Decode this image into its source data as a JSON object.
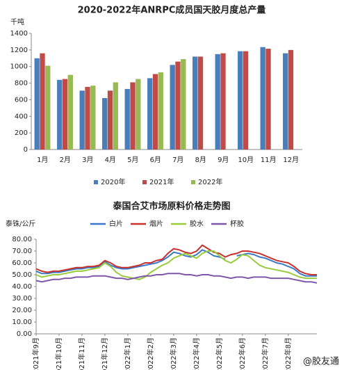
{
  "chart_data": [
    {
      "type": "bar",
      "title": "2020-2022年ANRPC成员国天胶月度总产量",
      "y_label": "千吨",
      "categories": [
        "1月",
        "2月",
        "3月",
        "4月",
        "5月",
        "6月",
        "7月",
        "8月",
        "9月",
        "10月",
        "11月",
        "12月"
      ],
      "series": [
        {
          "name": "2020年",
          "color": "#4a7ebb",
          "values": [
            1100,
            840,
            710,
            620,
            730,
            860,
            1020,
            1120,
            1150,
            1185,
            1235,
            1160
          ]
        },
        {
          "name": "2021年",
          "color": "#be4b48",
          "values": [
            1160,
            850,
            755,
            710,
            810,
            910,
            1060,
            1120,
            1160,
            1185,
            1215,
            1200
          ]
        },
        {
          "name": "2022年",
          "color": "#98b954",
          "values": [
            1010,
            900,
            770,
            810,
            850,
            930,
            1090,
            null,
            null,
            null,
            null,
            null
          ]
        }
      ],
      "ylim": [
        0,
        1400
      ],
      "yticks": [
        0,
        200,
        400,
        600,
        800,
        1000,
        1200,
        1400
      ],
      "legend": "bottom"
    },
    {
      "type": "line",
      "title": "泰国合艾市场原料价格走势图",
      "y_label": "泰铢/公斤",
      "categories": [
        "2021年9月",
        null,
        null,
        null,
        "2021年10月",
        null,
        null,
        null,
        "2021年11月",
        null,
        null,
        null,
        "2021年12月",
        null,
        null,
        null,
        "2022年1月",
        null,
        null,
        null,
        "2022年2月",
        null,
        null,
        null,
        "2022年3月",
        null,
        null,
        null,
        "2022年4月",
        null,
        null,
        null,
        "2022年5月",
        null,
        null,
        null,
        "2022年6月",
        null,
        null,
        null,
        "2022年7月",
        null,
        null,
        null,
        "2022年8月",
        null,
        null,
        null,
        null,
        null
      ],
      "series": [
        {
          "name": "白片",
          "color": "#3a78c9",
          "values": [
            53,
            51,
            51,
            52,
            52,
            53,
            54,
            55,
            55,
            56,
            56,
            57,
            61,
            58,
            56,
            55,
            55,
            56,
            57,
            58,
            59,
            60,
            62,
            65,
            69,
            68,
            66,
            65,
            67,
            71,
            69,
            66,
            65,
            63,
            null,
            66,
            67,
            68,
            67,
            65,
            64,
            62,
            60,
            59,
            57,
            55,
            51,
            49,
            49,
            49
          ]
        },
        {
          "name": "烟片",
          "color": "#c9302c",
          "values": [
            55,
            53,
            52,
            53,
            53,
            54,
            55,
            56,
            56,
            57,
            57,
            58,
            62,
            60,
            57,
            56,
            56,
            57,
            58,
            60,
            60,
            62,
            63,
            68,
            72,
            71,
            69,
            68,
            70,
            75,
            72,
            69,
            68,
            65,
            67,
            68,
            70,
            70,
            69,
            68,
            66,
            64,
            62,
            61,
            60,
            57,
            53,
            51,
            50,
            50
          ]
        },
        {
          "name": "胶水",
          "color": "#9acb3c",
          "values": [
            50,
            48,
            49,
            50,
            50,
            51,
            52,
            53,
            53,
            54,
            55,
            56,
            60,
            57,
            52,
            49,
            48,
            47,
            46,
            48,
            52,
            55,
            58,
            60,
            64,
            66,
            68,
            66,
            64,
            68,
            70,
            70,
            66,
            62,
            60,
            63,
            67,
            66,
            62,
            58,
            56,
            55,
            54,
            53,
            52,
            50,
            48,
            47,
            47,
            47
          ]
        },
        {
          "name": "杯胶",
          "color": "#7e57a8",
          "values": [
            45,
            44,
            45,
            46,
            46,
            47,
            47,
            48,
            48,
            48,
            49,
            49,
            49,
            48,
            47,
            47,
            46,
            47,
            48,
            49,
            49,
            50,
            50,
            51,
            51,
            51,
            50,
            50,
            49,
            50,
            50,
            49,
            49,
            48,
            47,
            48,
            48,
            47,
            48,
            48,
            48,
            47,
            47,
            47,
            47,
            46,
            45,
            44,
            44,
            43
          ]
        }
      ],
      "ylim": [
        0,
        80
      ],
      "yticks": [
        {
          "value": 0,
          "label": "0.00"
        },
        {
          "value": 10,
          "label": "10.00"
        },
        {
          "value": 20,
          "label": "20.00"
        },
        {
          "value": 30,
          "label": "30.00"
        },
        {
          "value": 40,
          "label": "40.00"
        },
        {
          "value": 50,
          "label": "50.00"
        },
        {
          "value": 60,
          "label": "60.00"
        },
        {
          "value": 70,
          "label": "70.00"
        },
        {
          "value": 80,
          "label": "80.00"
        }
      ],
      "legend": "top",
      "watermark": "@胶友通"
    }
  ]
}
